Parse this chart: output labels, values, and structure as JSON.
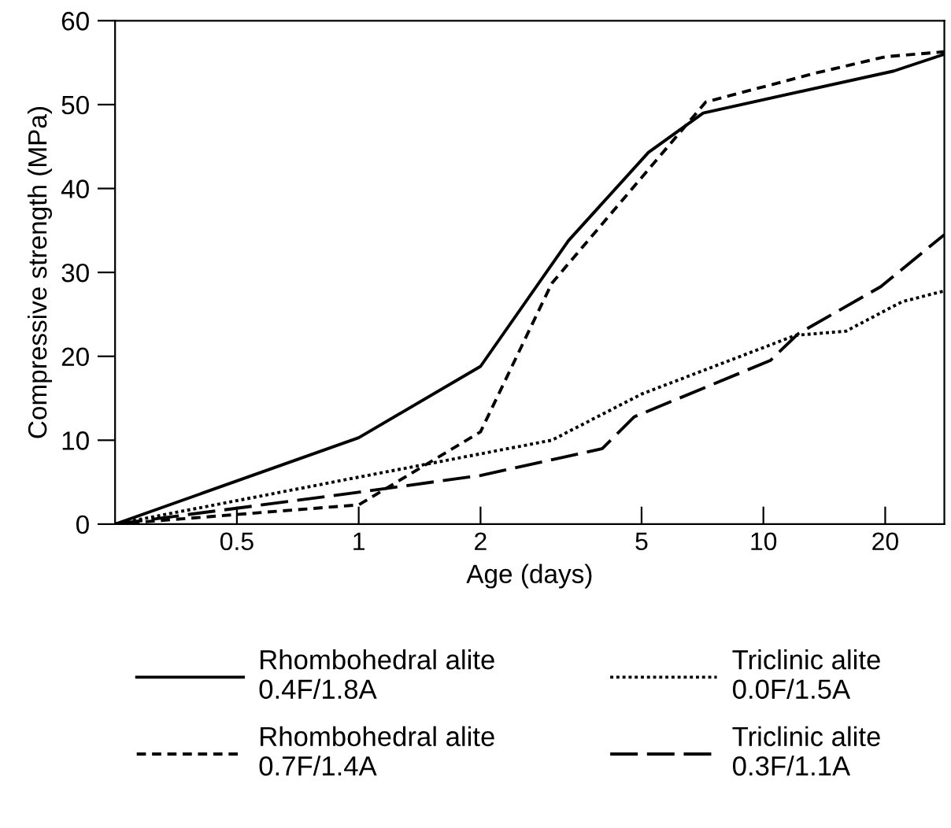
{
  "chart_data": {
    "type": "line",
    "xlabel": "Age (days)",
    "ylabel": "Compressive strength (MPa)",
    "log": "x",
    "xlim": [
      0.25,
      28
    ],
    "xticks": [
      0.5,
      1,
      2,
      5,
      10,
      20
    ],
    "ylim": [
      0,
      60
    ],
    "yticks": [
      0,
      10,
      20,
      30,
      40,
      50,
      60
    ],
    "grid": false,
    "legend": "bottom",
    "marker": "none",
    "series": [
      {
        "name": "Rhombohedral alite\n0.4F/1.8A",
        "color": "#000000",
        "line_style": "solid",
        "x": [
          0.25,
          1,
          2,
          3.3,
          5.2,
          7.1,
          21,
          28
        ],
        "values": [
          0,
          10.3,
          18.8,
          33.8,
          44.3,
          49,
          54,
          56
        ]
      },
      {
        "name": "Rhombohedral alite\n0.7F/1.4A",
        "color": "#000000",
        "line_style": "dashed",
        "x": [
          0.25,
          1,
          2,
          3,
          6.3,
          7.2,
          13.3,
          20,
          28
        ],
        "values": [
          0,
          2.3,
          11,
          28.7,
          47,
          50.3,
          53.7,
          55.7,
          56.3
        ]
      },
      {
        "name": "Triclinic alite\n0.0F/1.5A",
        "color": "#000000",
        "line_style": "dotted",
        "x": [
          0.25,
          1,
          3,
          5,
          12,
          16,
          22,
          28
        ],
        "values": [
          0,
          5.6,
          10,
          15.5,
          22.5,
          23,
          26.5,
          27.8
        ]
      },
      {
        "name": "Triclinic alite\n0.3F/1.1A",
        "color": "#000000",
        "line_style": "dashed",
        "x": [
          0.25,
          1,
          2,
          4,
          4.8,
          10.4,
          12.2,
          19.5,
          28
        ],
        "values": [
          0,
          3.8,
          5.8,
          9,
          12.8,
          19.5,
          22.7,
          28.3,
          34.5
        ]
      }
    ]
  }
}
